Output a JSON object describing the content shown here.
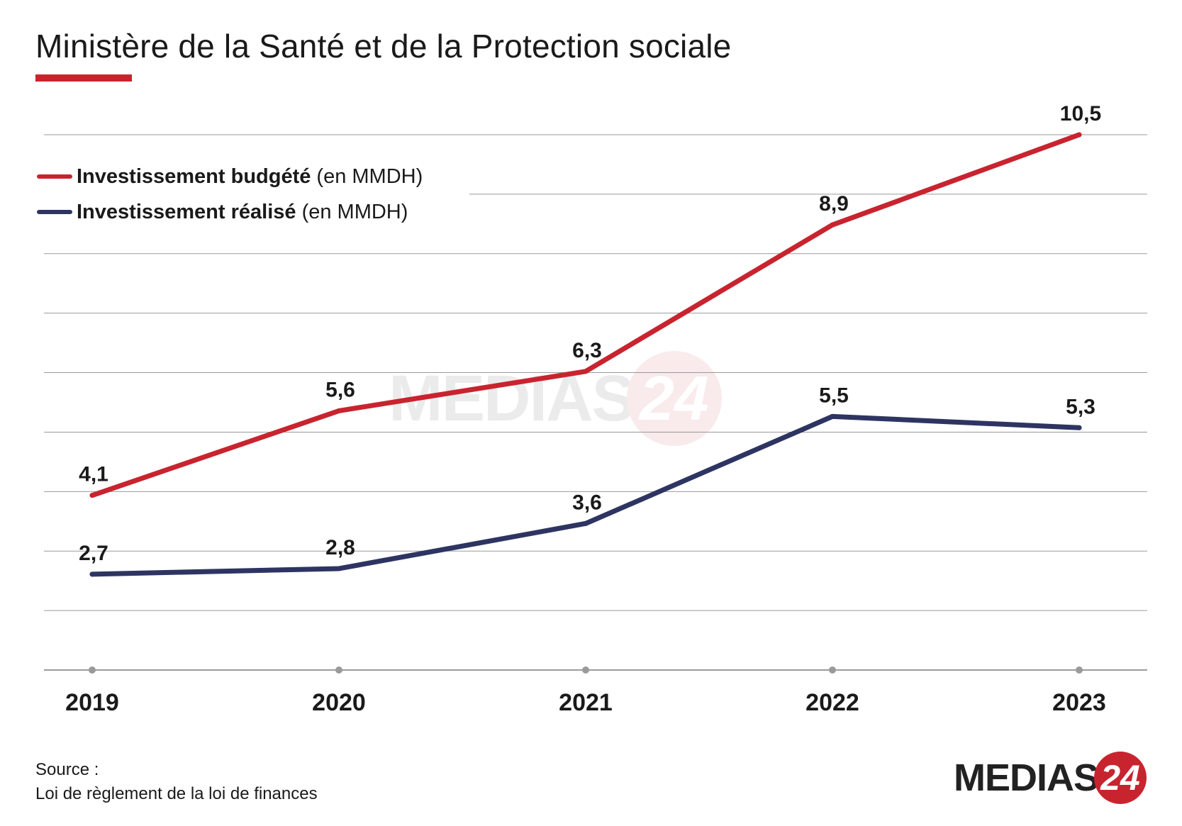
{
  "title": "Ministère de la Santé et de la Protection sociale",
  "colors": {
    "accent": "#c8242f",
    "budgete": "#c8242f",
    "realise": "#2e3462",
    "grid": "#9a9a9a",
    "text": "#1a1a1a"
  },
  "legend": {
    "items": [
      {
        "bold": "Investissement budgété",
        "rest": " (en MMDH)"
      },
      {
        "bold": "Investissement réalisé",
        "rest": " (en MMDH)"
      }
    ]
  },
  "chart_data": {
    "type": "line",
    "title": "Ministère de la Santé et de la Protection sociale",
    "x": [
      "2019",
      "2020",
      "2021",
      "2022",
      "2023"
    ],
    "series": [
      {
        "name": "Investissement budgété (en MMDH)",
        "values": [
          4.1,
          5.6,
          6.3,
          8.9,
          10.5
        ],
        "labels": [
          "4,1",
          "5,6",
          "6,3",
          "8,9",
          "10,5"
        ]
      },
      {
        "name": "Investissement réalisé (en MMDH)",
        "values": [
          2.7,
          2.8,
          3.6,
          5.5,
          5.3
        ],
        "labels": [
          "2,7",
          "2,8",
          "3,6",
          "5,5",
          "5,3"
        ]
      }
    ],
    "ylim": [
      1,
      10.5
    ],
    "grid": true,
    "legend_position": "top-left"
  },
  "source": {
    "label": "Source :",
    "value": "Loi de règlement de la loi de finances"
  },
  "brand": {
    "name": "MEDIAS",
    "number": "24"
  }
}
